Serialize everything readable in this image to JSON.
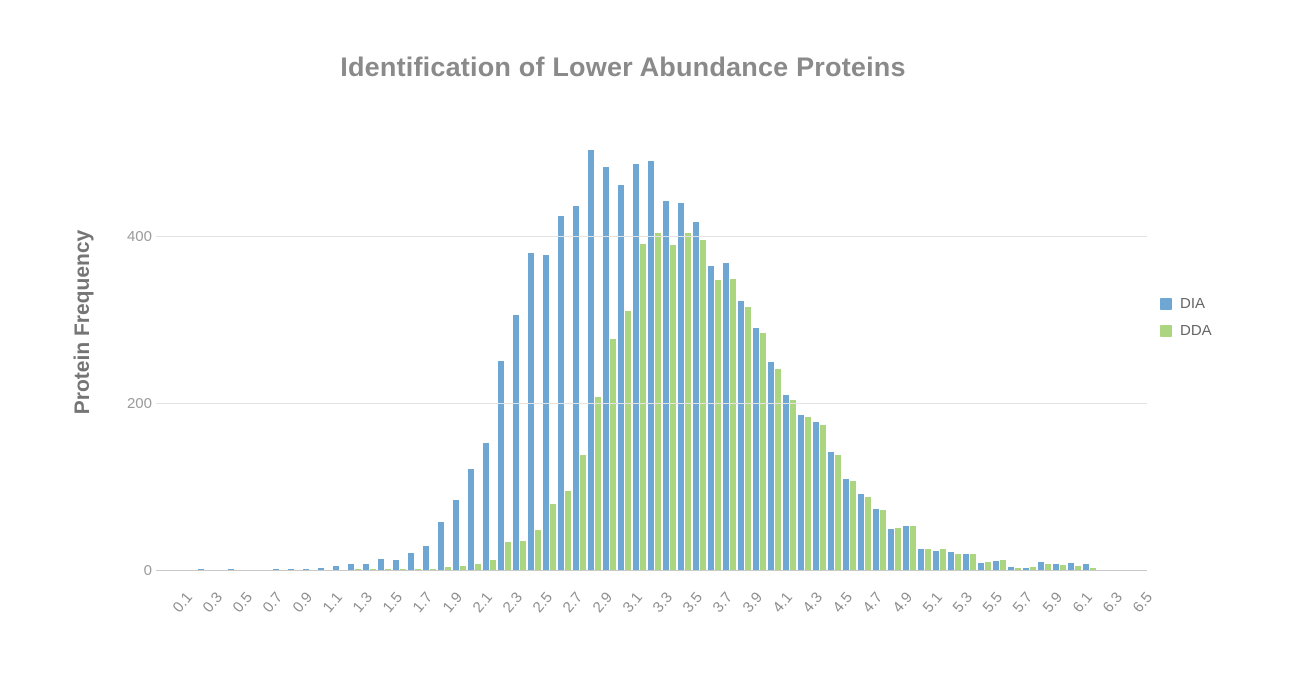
{
  "title": "Identification of Lower Abundance Proteins",
  "y_axis": {
    "title": "Protein Frequency"
  },
  "legend": {
    "items": [
      {
        "label": "DIA",
        "color": "#6ea6d4"
      },
      {
        "label": "DDA",
        "color": "#abd57e"
      }
    ]
  },
  "colors": {
    "dia": "#6ea6d4",
    "dda": "#abd57e",
    "gridline": "#e3e3e3",
    "axis_line": "#c9c9c9",
    "title_text": "#8a8a8a",
    "tick_text": "#8e8e8e"
  },
  "chart_data": {
    "type": "bar",
    "title": "Identification of Lower Abundance Proteins",
    "xlabel": "",
    "ylabel": "Protein Frequency",
    "ylim": [
      0,
      520
    ],
    "gridlines": [
      0,
      200,
      400
    ],
    "grid": true,
    "legend_position": "right",
    "bin_width": 0.1,
    "categories": [
      "0.1",
      "0.2",
      "0.3",
      "0.4",
      "0.5",
      "0.6",
      "0.7",
      "0.8",
      "0.9",
      "1.0",
      "1.1",
      "1.2",
      "1.3",
      "1.4",
      "1.5",
      "1.6",
      "1.7",
      "1.8",
      "1.9",
      "2.0",
      "2.1",
      "2.2",
      "2.3",
      "2.4",
      "2.5",
      "2.6",
      "2.7",
      "2.8",
      "2.9",
      "3.0",
      "3.1",
      "3.2",
      "3.3",
      "3.4",
      "3.5",
      "3.6",
      "3.7",
      "3.8",
      "3.9",
      "4.0",
      "4.1",
      "4.2",
      "4.3",
      "4.4",
      "4.5",
      "4.6",
      "4.7",
      "4.8",
      "4.9",
      "5.0",
      "5.1",
      "5.2",
      "5.3",
      "5.4",
      "5.5",
      "5.6",
      "5.7",
      "5.8",
      "5.9",
      "6.0",
      "6.1",
      "6.2",
      "6.3",
      "6.4",
      "6.5"
    ],
    "x_tick_labels": [
      "0.1",
      "0.3",
      "0.5",
      "0.7",
      "0.9",
      "1.1",
      "1.3",
      "1.5",
      "1.7",
      "1.9",
      "2.1",
      "2.3",
      "2.5",
      "2.7",
      "2.9",
      "3.1",
      "3.3",
      "3.5",
      "3.7",
      "3.9",
      "4.1",
      "4.3",
      "4.5",
      "4.7",
      "4.9",
      "5.1",
      "5.3",
      "5.5",
      "5.7",
      "5.9",
      "6.1",
      "6.3",
      "6.5"
    ],
    "series": [
      {
        "name": "DIA",
        "color": "#6ea6d4",
        "values": [
          0,
          1,
          2,
          1,
          2,
          1,
          1,
          2,
          3,
          3,
          4,
          6,
          8,
          9,
          14,
          13,
          22,
          30,
          59,
          85,
          122,
          153,
          251,
          307,
          381,
          379,
          425,
          437,
          504,
          484,
          462,
          487,
          491,
          443,
          441,
          418,
          365,
          369,
          323,
          291,
          250,
          211,
          187,
          178,
          142,
          110,
          92,
          74,
          50,
          54,
          26,
          24,
          23,
          20,
          10,
          12,
          5,
          4,
          11,
          9,
          10,
          8,
          0,
          0,
          0
        ]
      },
      {
        "name": "DDA",
        "color": "#abd57e",
        "values": [
          0,
          0,
          1,
          0,
          1,
          0,
          0,
          1,
          1,
          1,
          1,
          1,
          2,
          2,
          2,
          2,
          3,
          3,
          5,
          6,
          8,
          13,
          35,
          36,
          49,
          80,
          96,
          139,
          209,
          278,
          311,
          392,
          405,
          390,
          405,
          397,
          348,
          350,
          316,
          285,
          242,
          205,
          184,
          175,
          139,
          108,
          89,
          73,
          51,
          54,
          27,
          26,
          20,
          21,
          11,
          13,
          4,
          5,
          9,
          7,
          6,
          4,
          0,
          0,
          0
        ]
      }
    ]
  }
}
